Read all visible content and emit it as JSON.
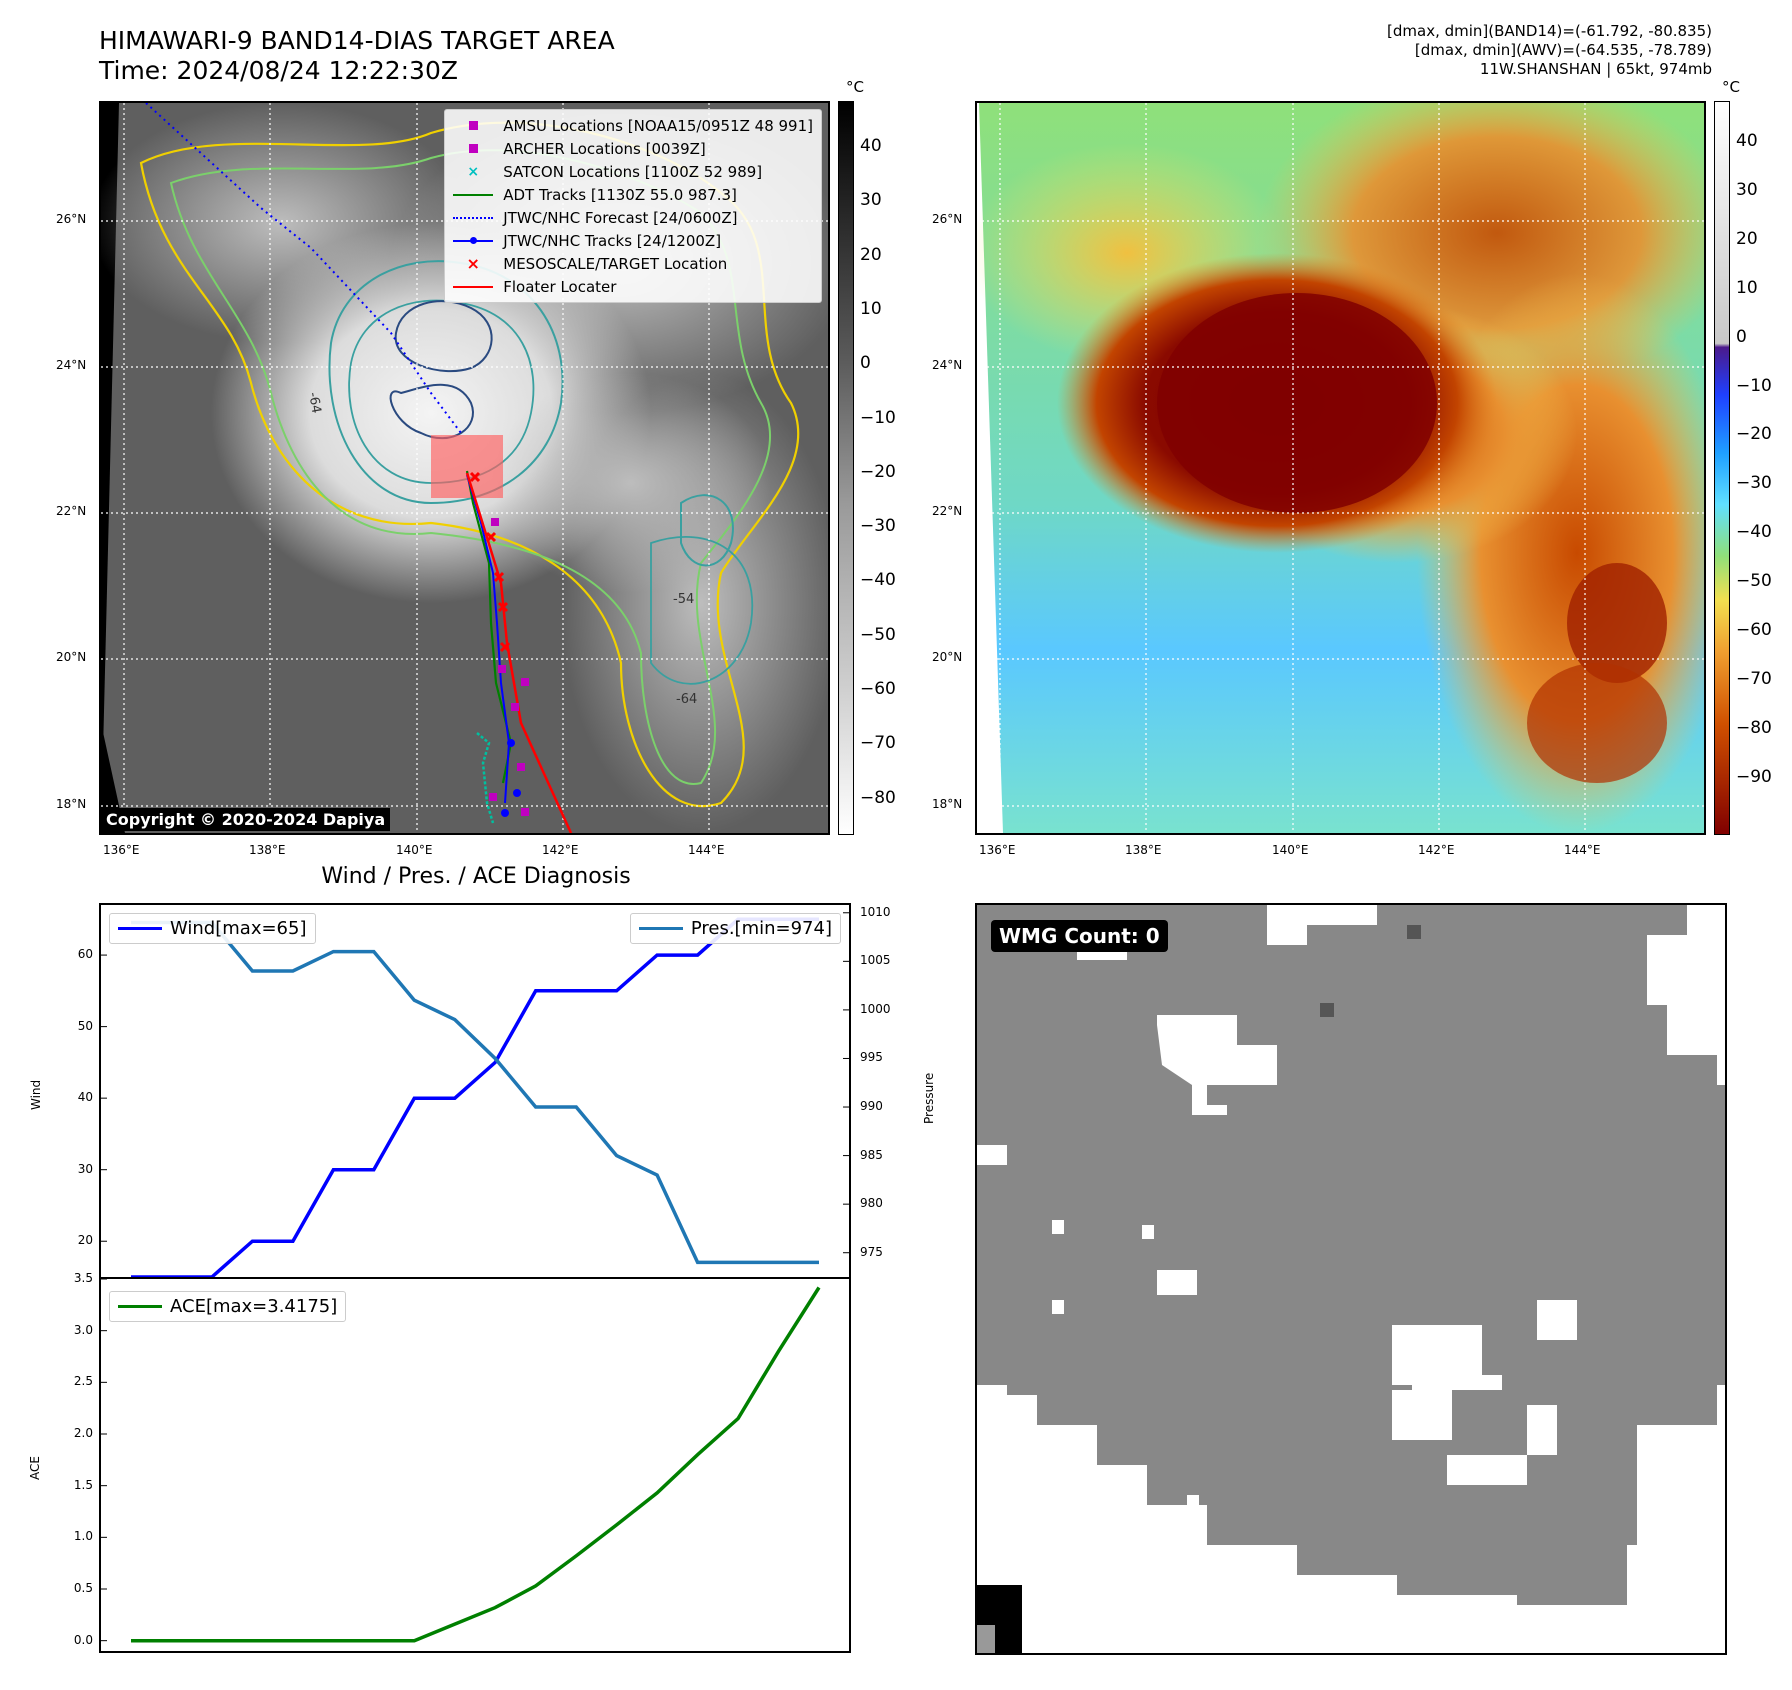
{
  "header": {
    "title_line1": "HIMAWARI-9 BAND14-DIAS TARGET AREA",
    "title_line2": "Time: 2024/08/24 12:22:30Z",
    "info_line1": "[dmax, dmin](BAND14)=(-61.792, -80.835)",
    "info_line2": "[dmax, dmin](AWV)=(-64.535, -78.789)",
    "info_line3": "11W.SHANSHAN | 65kt, 974mb"
  },
  "maps": {
    "lat_ticks": [
      "26°N",
      "24°N",
      "22°N",
      "20°N",
      "18°N"
    ],
    "lon_ticks": [
      "136°E",
      "138°E",
      "140°E",
      "142°E",
      "144°E"
    ],
    "copyright": "Copyright © 2020-2024 Dapiya",
    "colorbar_unit": "°C",
    "bw_colorbar_ticks": [
      "40",
      "30",
      "20",
      "10",
      "0",
      "−10",
      "−20",
      "−30",
      "−40",
      "−50",
      "−60",
      "−70",
      "−80"
    ],
    "color_colorbar_ticks": [
      "40",
      "30",
      "20",
      "10",
      "0",
      "−10",
      "−20",
      "−30",
      "−40",
      "−50",
      "−60",
      "−70",
      "−80",
      "−90"
    ],
    "contour_labels": [
      "-64",
      "-54",
      "-64"
    ],
    "legend": [
      {
        "label": "AMSU Locations [NOAA15/0951Z 48 991]",
        "marker": "square",
        "color": "#c000c0"
      },
      {
        "label": "ARCHER Locations [0039Z]",
        "marker": "square",
        "color": "#c000c0"
      },
      {
        "label": "SATCON Locations [1100Z 52 989]",
        "marker": "x",
        "color": "#00c0c0"
      },
      {
        "label": "ADT Tracks [1130Z 55.0 987.3]",
        "marker": "line",
        "color": "#008000"
      },
      {
        "label": "JTWC/NHC Forecast [24/0600Z]",
        "marker": "dotted",
        "color": "#0000ff"
      },
      {
        "label": "JTWC/NHC Tracks [24/1200Z]",
        "marker": "line-dot",
        "color": "#0000ff"
      },
      {
        "label": "MESOSCALE/TARGET Location",
        "marker": "x",
        "color": "#ff0000"
      },
      {
        "label": "Floater Locater",
        "marker": "line",
        "color": "#ff0000"
      }
    ]
  },
  "diagnosis": {
    "title": "Wind / Pres. / ACE Diagnosis",
    "wind_legend": "Wind[max=65]",
    "pres_legend": "Pres.[min=974]",
    "ace_legend": "ACE[max=3.4175]",
    "wind_axis_label": "Wind",
    "pres_axis_label": "Pressure",
    "ace_axis_label": "ACE"
  },
  "wmg": {
    "label": "WMG Count: 0"
  },
  "chart_data": [
    {
      "type": "line",
      "title": "Wind / Pres. / ACE Diagnosis",
      "ylabel": "Wind",
      "ylim": [
        15,
        67
      ],
      "y_ticks": [
        20,
        30,
        40,
        50,
        60
      ],
      "series": [
        {
          "name": "Wind[max=65]",
          "color": "#0000ff",
          "values": [
            15,
            15,
            15,
            20,
            20,
            30,
            30,
            40,
            40,
            45,
            55,
            55,
            55,
            60,
            60,
            65,
            65,
            65
          ]
        }
      ]
    },
    {
      "type": "line",
      "ylabel": "Pressure",
      "ylim": [
        972.5,
        1010.8
      ],
      "y_ticks": [
        975,
        980,
        985,
        990,
        995,
        1000,
        1005,
        1010
      ],
      "series": [
        {
          "name": "Pres.[min=974]",
          "color": "#1f77b4",
          "values": [
            1009,
            1009,
            1009,
            1004,
            1004,
            1006,
            1006,
            1001,
            999,
            995,
            990,
            990,
            985,
            983,
            974,
            974,
            974,
            974
          ]
        }
      ]
    },
    {
      "type": "line",
      "ylabel": "ACE",
      "ylim": [
        -0.1,
        3.5
      ],
      "y_ticks": [
        0.0,
        0.5,
        1.0,
        1.5,
        2.0,
        2.5,
        3.0,
        3.5
      ],
      "series": [
        {
          "name": "ACE[max=3.4175]",
          "color": "#008000",
          "values": [
            0.0,
            0.0,
            0.0,
            0.0,
            0.0,
            0.0,
            0.0,
            0.0,
            0.16,
            0.32,
            0.53,
            0.82,
            1.12,
            1.43,
            1.8,
            2.15,
            2.8,
            3.4175
          ]
        }
      ]
    }
  ]
}
